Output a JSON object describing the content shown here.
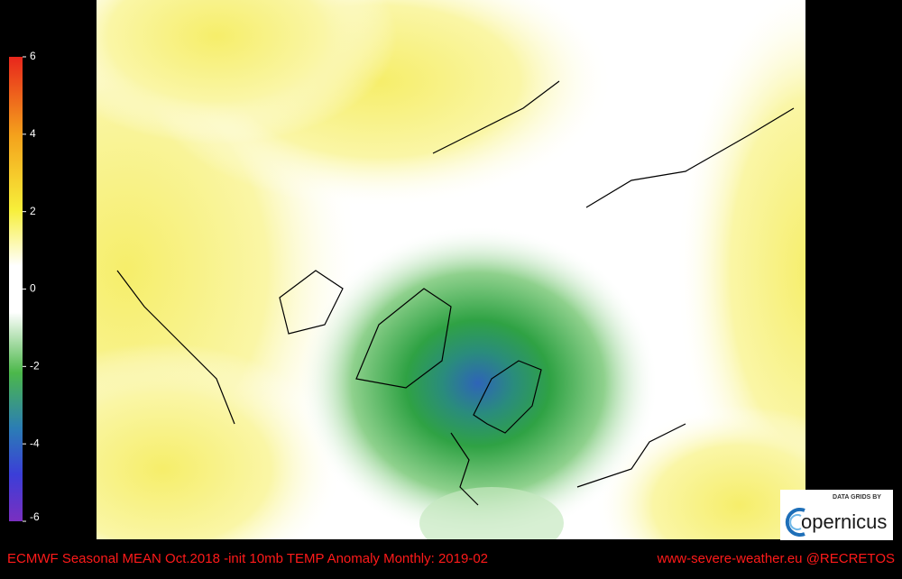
{
  "colorbar": {
    "range": [
      -6,
      6
    ],
    "ticks": [
      6,
      4,
      2,
      0,
      -2,
      -4,
      -6
    ]
  },
  "footer": {
    "left": "ECMWF Seasonal MEAN Oct.2018 -init   10mb TEMP Anomaly   Monthly: 2019-02",
    "right": "www-severe-weather.eu  @RECRETOS"
  },
  "logo": {
    "caption": "DATA GRIDS BY",
    "name": "opernicus"
  }
}
